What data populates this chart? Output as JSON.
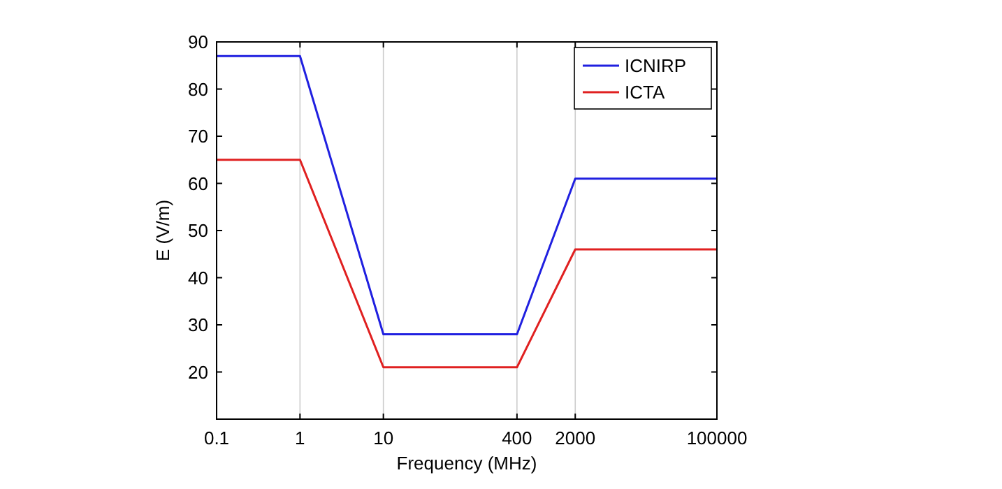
{
  "chart_data": {
    "type": "line",
    "xlabel": "Frequency (MHz)",
    "ylabel": "E (V/m)",
    "log": "x",
    "x": [
      0.1,
      1,
      10,
      400,
      2000,
      100000
    ],
    "series": [
      {
        "name": "ICNIRP",
        "color": "#2020e0",
        "values": [
          87,
          87,
          28,
          28,
          61,
          61
        ]
      },
      {
        "name": "ICTA",
        "color": "#e02020",
        "values": [
          65,
          65,
          21,
          21,
          46,
          46
        ]
      }
    ],
    "xlim": [
      0.1,
      100000
    ],
    "xticks": [
      0.1,
      1,
      10,
      400,
      2000,
      100000
    ],
    "ylim": [
      10,
      90
    ],
    "yticks": [
      20,
      30,
      40,
      50,
      60,
      70,
      80,
      90
    ],
    "grid": "x",
    "legend": "top right",
    "marker": "none",
    "line_style": "solid"
  }
}
